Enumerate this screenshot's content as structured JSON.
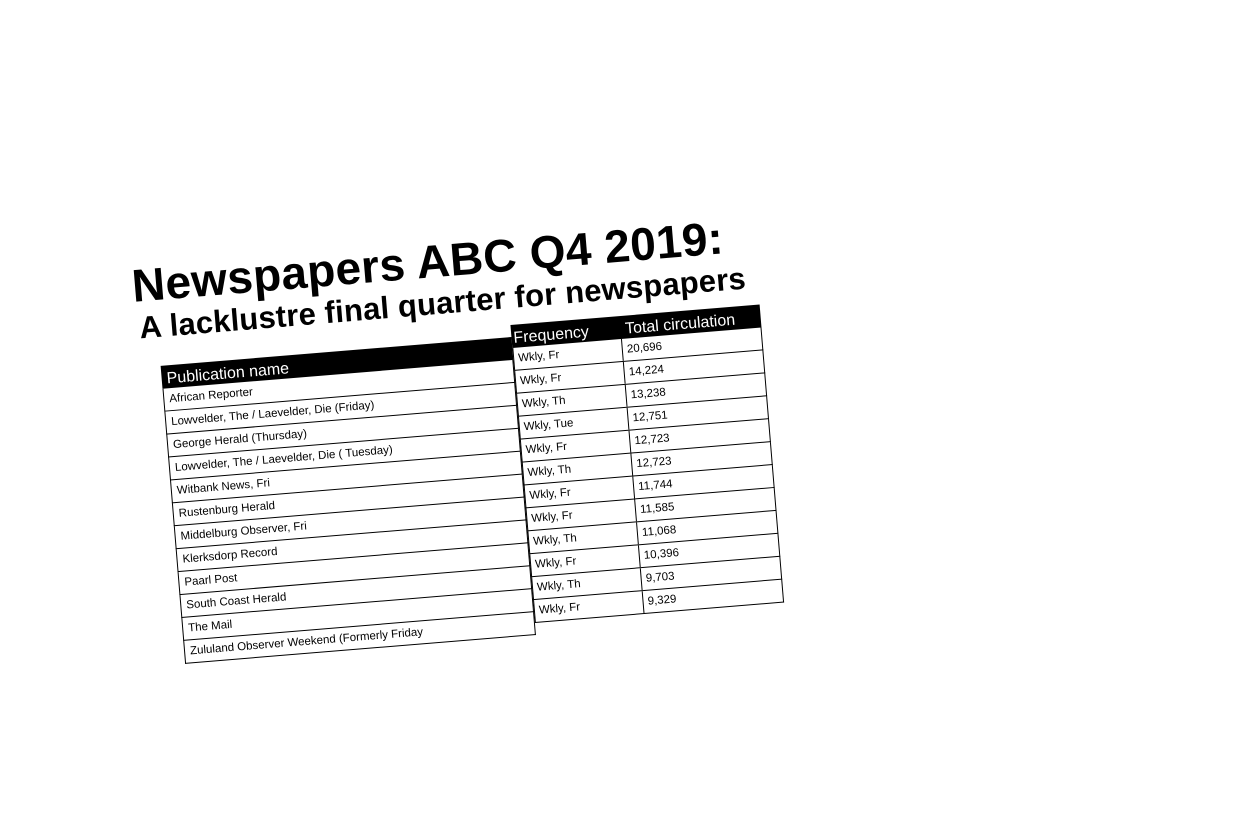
{
  "title": "Newspapers ABC Q4 2019:",
  "subtitle": "A lacklustre final quarter for newspapers",
  "table": {
    "headers": {
      "name": "Publication name",
      "frequency": "Frequency",
      "circulation": "Total circulation"
    },
    "names": [
      "African Reporter",
      "Lowvelder, The / Laevelder, Die (Friday)",
      "George Herald (Thursday)",
      "Lowvelder, The / Laevelder, Die ( Tuesday)",
      "Witbank News, Fri",
      "Rustenburg Herald",
      "Middelburg Observer, Fri",
      "Klerksdorp Record",
      "Paarl Post",
      "South Coast Herald",
      "The Mail",
      "Zululand Observer Weekend (Formerly Friday"
    ],
    "values": [
      {
        "frequency": "Wkly, Fr",
        "circulation": "20,696"
      },
      {
        "frequency": "Wkly, Fr",
        "circulation": "14,224"
      },
      {
        "frequency": "Wkly, Th",
        "circulation": "13,238"
      },
      {
        "frequency": "Wkly, Tue",
        "circulation": "12,751"
      },
      {
        "frequency": "Wkly, Fr",
        "circulation": "12,723"
      },
      {
        "frequency": "Wkly, Th",
        "circulation": "12,723"
      },
      {
        "frequency": "Wkly, Fr",
        "circulation": "11,744"
      },
      {
        "frequency": "Wkly, Fr",
        "circulation": "11,585"
      },
      {
        "frequency": "Wkly, Th",
        "circulation": "11,068"
      },
      {
        "frequency": "Wkly, Fr",
        "circulation": "10,396"
      },
      {
        "frequency": "Wkly, Th",
        "circulation": "9,703"
      },
      {
        "frequency": "Wkly, Fr",
        "circulation": "9,329"
      }
    ]
  }
}
